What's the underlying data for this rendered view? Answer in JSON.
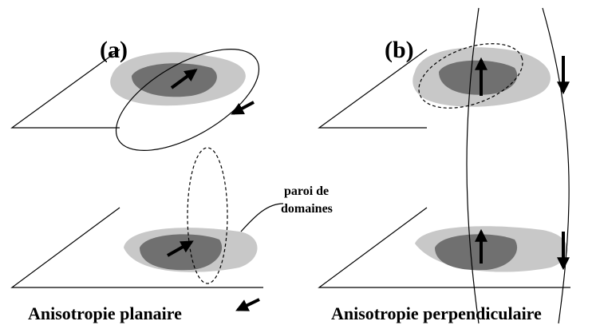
{
  "panels": [
    {
      "label": "(a)",
      "caption": "Anisotropie planaire"
    },
    {
      "label": "(b)",
      "caption": "Anisotropie perpendiculaire"
    }
  ],
  "annotation": {
    "lines": [
      "paroi de",
      "domaines"
    ]
  }
}
